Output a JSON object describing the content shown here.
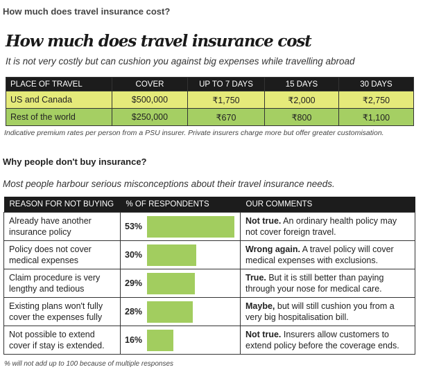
{
  "section1": {
    "question": "How much does travel insurance cost?",
    "title": "How much does travel insurance cost",
    "subtitle": "It is not very costly but can cushion you against big expenses while travelling abroad",
    "headers": [
      "PLACE OF TRAVEL",
      "COVER",
      "UP TO 7 DAYS",
      "15 DAYS",
      "30 DAYS"
    ],
    "rows": [
      [
        "US and Canada",
        "$500,000",
        "₹1,750",
        "₹2,000",
        "₹2,750"
      ],
      [
        "Rest of the world",
        "$250,000",
        "₹670",
        "₹800",
        "₹1,100"
      ]
    ],
    "row_colors": [
      "#e5ea7a",
      "#a5cf63"
    ],
    "note": "Indicative premium rates per person from a PSU insurer. Private insurers charge more but offer greater customisation."
  },
  "section2": {
    "question": "Why people don't buy insurance?",
    "subtitle": "Most people harbour serious misconceptions about their travel insurance needs.",
    "headers": [
      "REASON FOR NOT BUYING",
      "% OF RESPONDENTS",
      "OUR COMMENTS"
    ],
    "bar_color": "#a2cd5f",
    "rows": [
      {
        "reason": "Already have another insurance policy",
        "percent": 53,
        "percent_label": "53%",
        "comment_bold": "Not true.",
        "comment": " An ordinary health policy may not cover foreign travel."
      },
      {
        "reason": "Policy does not cover medical expenses",
        "percent": 30,
        "percent_label": "30%",
        "comment_bold": "Wrong again.",
        "comment": " A travel policy will cover medical expenses with exclusions."
      },
      {
        "reason": "Claim procedure is very lengthy and tedious",
        "percent": 29,
        "percent_label": "29%",
        "comment_bold": "True.",
        "comment": " But it is still better than paying through your nose for medical care."
      },
      {
        "reason": "Existing plans won't fully cover the expenses fully",
        "percent": 28,
        "percent_label": "28%",
        "comment_bold": "Maybe,",
        "comment": " but will still cushion you from a very big hospitalisation bill."
      },
      {
        "reason": "Not possible to extend cover if stay is extended.",
        "percent": 16,
        "percent_label": "16%",
        "comment_bold": "Not true.",
        "comment": " Insurers allow customers to extend policy before the coverage ends."
      }
    ],
    "note": "% will not add up to 100 because of multiple responses"
  }
}
